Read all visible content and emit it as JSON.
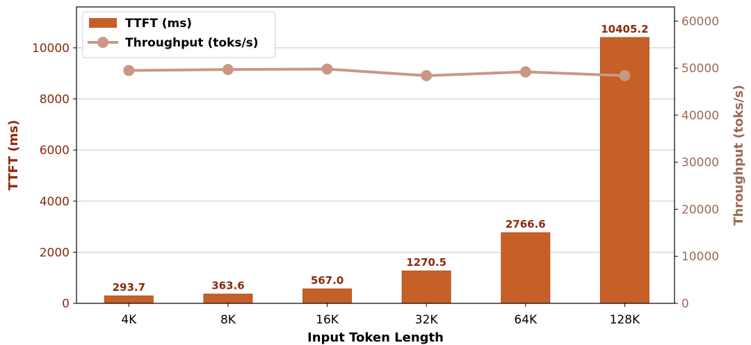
{
  "chart_data": {
    "type": "bar",
    "categories": [
      "4K",
      "8K",
      "16K",
      "32K",
      "64K",
      "128K"
    ],
    "series": [
      {
        "name": "TTFT (ms)",
        "kind": "bar",
        "axis": "left",
        "color": "#c65f28",
        "values": [
          293.7,
          363.6,
          567.0,
          1270.5,
          2766.6,
          10405.2
        ],
        "labels": [
          "293.7",
          "363.6",
          "567.0",
          "1270.5",
          "2766.6",
          "10405.2"
        ]
      },
      {
        "name": "Throughput (toks/s)",
        "kind": "line",
        "axis": "right",
        "color": "#c89884",
        "values": [
          49500,
          49700,
          49800,
          48400,
          49200,
          48400
        ]
      }
    ],
    "xlabel": "Input Token Length",
    "ylabel": "TTFT (ms)",
    "y2label": "Throughput (toks/s)",
    "ylim": [
      0,
      11600
    ],
    "y2lim": [
      0,
      63000
    ],
    "yticks": [
      0,
      2000,
      4000,
      6000,
      8000,
      10000
    ],
    "y2ticks": [
      0,
      10000,
      20000,
      30000,
      40000,
      50000,
      60000
    ],
    "grid": true,
    "legend": "top-left",
    "colors": {
      "left_axis": "#8b2a0e",
      "right_axis": "#9c6b58",
      "bar_label": "#8b2a0e",
      "grid": "#d0d0d0"
    }
  }
}
